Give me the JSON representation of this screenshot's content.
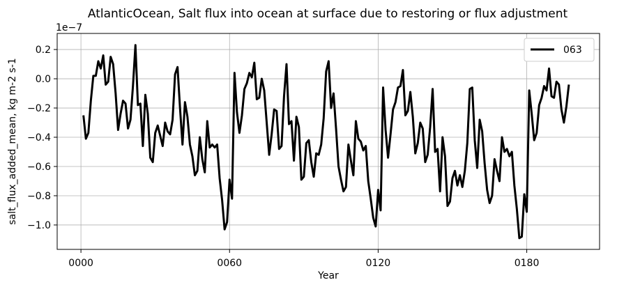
{
  "chart_data": {
    "type": "line",
    "title": "AtlanticOcean, Salt flux into ocean at surface due to restoring or flux adjustment",
    "x_label": "Year",
    "y_label": "salt_flux_added_mean, kg m-2 s-1",
    "y_offset_label": "1e−7",
    "xlim": [
      -9.6,
      209.4
    ],
    "ylim": [
      -1.167,
      0.31
    ],
    "xticks": [
      {
        "value": 0,
        "label": "0000"
      },
      {
        "value": 60,
        "label": "0060"
      },
      {
        "value": 120,
        "label": "0120"
      },
      {
        "value": 180,
        "label": "0180"
      }
    ],
    "yticks": [
      {
        "value": -1.0,
        "label": "−1.0"
      },
      {
        "value": -0.8,
        "label": "−0.8"
      },
      {
        "value": -0.6,
        "label": "−0.6"
      },
      {
        "value": -0.4,
        "label": "−0.4"
      },
      {
        "value": -0.2,
        "label": "−0.2"
      },
      {
        "value": 0,
        "label": "0.0"
      },
      0.2
    ],
    "grid": true,
    "legend": "upper right",
    "x": [
      1,
      2,
      3,
      4,
      5,
      6,
      7,
      8,
      9,
      10,
      11,
      12,
      13,
      14,
      15,
      16,
      17,
      18,
      19,
      20,
      21,
      22,
      23,
      24,
      25,
      26,
      27,
      28,
      29,
      30,
      31,
      32,
      33,
      34,
      35,
      36,
      37,
      38,
      39,
      40,
      41,
      42,
      43,
      44,
      45,
      46,
      47,
      48,
      49,
      50,
      51,
      52,
      53,
      54,
      55,
      56,
      57,
      58,
      59,
      60,
      61,
      62,
      63,
      64,
      65,
      66,
      67,
      68,
      69,
      70,
      71,
      72,
      73,
      74,
      75,
      76,
      77,
      78,
      79,
      80,
      81,
      82,
      83,
      84,
      85,
      86,
      87,
      88,
      89,
      90,
      91,
      92,
      93,
      94,
      95,
      96,
      97,
      98,
      99,
      100,
      101,
      102,
      103,
      104,
      105,
      106,
      107,
      108,
      109,
      110,
      111,
      112,
      113,
      114,
      115,
      116,
      117,
      118,
      119,
      120,
      121,
      122,
      123,
      124,
      125,
      126,
      127,
      128,
      129,
      130,
      131,
      132,
      133,
      134,
      135,
      136,
      137,
      138,
      139,
      140,
      141,
      142,
      143,
      144,
      145,
      146,
      147,
      148,
      149,
      150,
      151,
      152,
      153,
      154,
      155,
      156,
      157,
      158,
      159,
      160,
      161,
      162,
      163,
      164,
      165,
      166,
      167,
      168,
      169,
      170,
      171,
      172,
      173,
      174,
      175,
      176,
      177,
      178,
      179,
      180,
      181,
      182,
      183,
      184,
      185,
      186,
      187,
      188,
      189,
      190,
      191,
      192,
      193,
      194,
      195,
      196,
      197
    ],
    "series": [
      {
        "name": "063",
        "color": "#000000",
        "values": [
          -0.25,
          -0.41,
          -0.37,
          -0.15,
          0.02,
          0.02,
          0.12,
          0.07,
          0.16,
          -0.04,
          -0.02,
          0.15,
          0.1,
          -0.1,
          -0.35,
          -0.24,
          -0.15,
          -0.17,
          -0.34,
          -0.28,
          -0.05,
          0.23,
          -0.18,
          -0.17,
          -0.46,
          -0.11,
          -0.24,
          -0.54,
          -0.57,
          -0.37,
          -0.32,
          -0.39,
          -0.46,
          -0.3,
          -0.36,
          -0.38,
          -0.28,
          0.03,
          0.08,
          -0.2,
          -0.45,
          -0.16,
          -0.26,
          -0.45,
          -0.53,
          -0.66,
          -0.63,
          -0.4,
          -0.55,
          -0.64,
          -0.29,
          -0.47,
          -0.45,
          -0.47,
          -0.45,
          -0.68,
          -0.83,
          -1.03,
          -0.98,
          -0.69,
          -0.82,
          0.04,
          -0.23,
          -0.37,
          -0.25,
          -0.07,
          -0.03,
          0.04,
          0.01,
          0.11,
          -0.14,
          -0.13,
          0.0,
          -0.08,
          -0.3,
          -0.52,
          -0.38,
          -0.21,
          -0.22,
          -0.48,
          -0.46,
          -0.12,
          0.1,
          -0.31,
          -0.29,
          -0.56,
          -0.26,
          -0.33,
          -0.69,
          -0.67,
          -0.44,
          -0.42,
          -0.57,
          -0.67,
          -0.51,
          -0.52,
          -0.45,
          -0.27,
          0.05,
          0.12,
          -0.2,
          -0.1,
          -0.34,
          -0.6,
          -0.69,
          -0.77,
          -0.74,
          -0.45,
          -0.56,
          -0.66,
          -0.29,
          -0.41,
          -0.43,
          -0.49,
          -0.46,
          -0.7,
          -0.82,
          -0.95,
          -1.01,
          -0.76,
          -0.9,
          -0.06,
          -0.35,
          -0.54,
          -0.38,
          -0.21,
          -0.16,
          -0.06,
          -0.05,
          0.06,
          -0.25,
          -0.22,
          -0.09,
          -0.26,
          -0.51,
          -0.44,
          -0.3,
          -0.34,
          -0.57,
          -0.52,
          -0.33,
          -0.07,
          -0.5,
          -0.48,
          -0.77,
          -0.4,
          -0.53,
          -0.87,
          -0.84,
          -0.68,
          -0.63,
          -0.73,
          -0.66,
          -0.74,
          -0.63,
          -0.44,
          -0.07,
          -0.06,
          -0.42,
          -0.61,
          -0.28,
          -0.36,
          -0.58,
          -0.76,
          -0.85,
          -0.8,
          -0.55,
          -0.63,
          -0.7,
          -0.4,
          -0.5,
          -0.48,
          -0.53,
          -0.5,
          -0.73,
          -0.89,
          -1.09,
          -1.08,
          -0.79,
          -0.91,
          -0.08,
          -0.24,
          -0.42,
          -0.37,
          -0.18,
          -0.13,
          -0.05,
          -0.08,
          0.07,
          -0.12,
          -0.13,
          -0.02,
          -0.04,
          -0.21,
          -0.3,
          -0.19,
          -0.04
        ]
      }
    ]
  }
}
